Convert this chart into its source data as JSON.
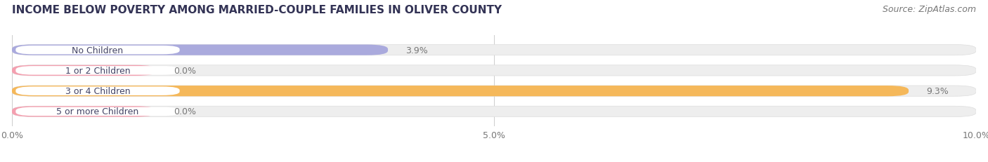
{
  "title": "INCOME BELOW POVERTY AMONG MARRIED-COUPLE FAMILIES IN OLIVER COUNTY",
  "source": "Source: ZipAtlas.com",
  "categories": [
    "No Children",
    "1 or 2 Children",
    "3 or 4 Children",
    "5 or more Children"
  ],
  "values": [
    3.9,
    0.0,
    9.3,
    0.0
  ],
  "bar_colors": [
    "#aaaadd",
    "#f4a0b0",
    "#f5b85a",
    "#f4a0b0"
  ],
  "bar_bg_color": "#eeeeee",
  "label_bg_color": "#ffffff",
  "xlim": [
    0,
    10.0
  ],
  "xticks": [
    0.0,
    5.0,
    10.0
  ],
  "xtick_labels": [
    "0.0%",
    "5.0%",
    "10.0%"
  ],
  "label_fontsize": 9,
  "title_fontsize": 11,
  "source_fontsize": 9,
  "value_fontsize": 9,
  "bar_height": 0.52,
  "background_color": "#ffffff",
  "zero_bar_width": 1.5
}
